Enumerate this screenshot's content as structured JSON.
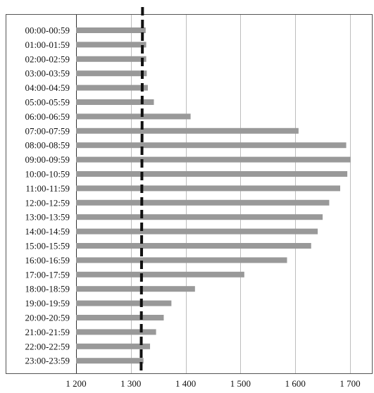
{
  "chart_data": {
    "type": "bar",
    "orientation": "horizontal",
    "categories": [
      "00:00-00:59",
      "01:00-01:59",
      "02:00-02:59",
      "03:00-03:59",
      "04:00-04:59",
      "05:00-05:59",
      "06:00-06:59",
      "07:00-07:59",
      "08:00-08:59",
      "09:00-09:59",
      "10:00-10:59",
      "11:00-11:59",
      "12:00-12:59",
      "13:00-13:59",
      "14:00-14:59",
      "15:00-15:59",
      "16:00-16:59",
      "17:00-17:59",
      "18:00-18:59",
      "19:00-19:59",
      "20:00-20:59",
      "21:00-21:59",
      "22:00-22:59",
      "23:00-23:59"
    ],
    "values": [
      1327,
      1328,
      1328,
      1329,
      1331,
      1342,
      1409,
      1606,
      1693,
      1701,
      1695,
      1682,
      1662,
      1650,
      1641,
      1629,
      1585,
      1507,
      1417,
      1374,
      1360,
      1346,
      1335,
      1323
    ],
    "reference_line": {
      "value": 1320,
      "style": "dashed"
    },
    "xlim": [
      1200,
      1700
    ],
    "xticks": [
      1200,
      1300,
      1400,
      1500,
      1600,
      1700
    ],
    "xtick_labels": [
      "1 200",
      "1 300",
      "1 400",
      "1 500",
      "1 600",
      "1 700"
    ],
    "title": "",
    "xlabel": "",
    "ylabel": "",
    "grid": "vertical",
    "legend": "none",
    "colors": {
      "bar": "#999999",
      "grid": "#bdbdbd",
      "reference": "#111111",
      "frame": "#555555"
    }
  }
}
